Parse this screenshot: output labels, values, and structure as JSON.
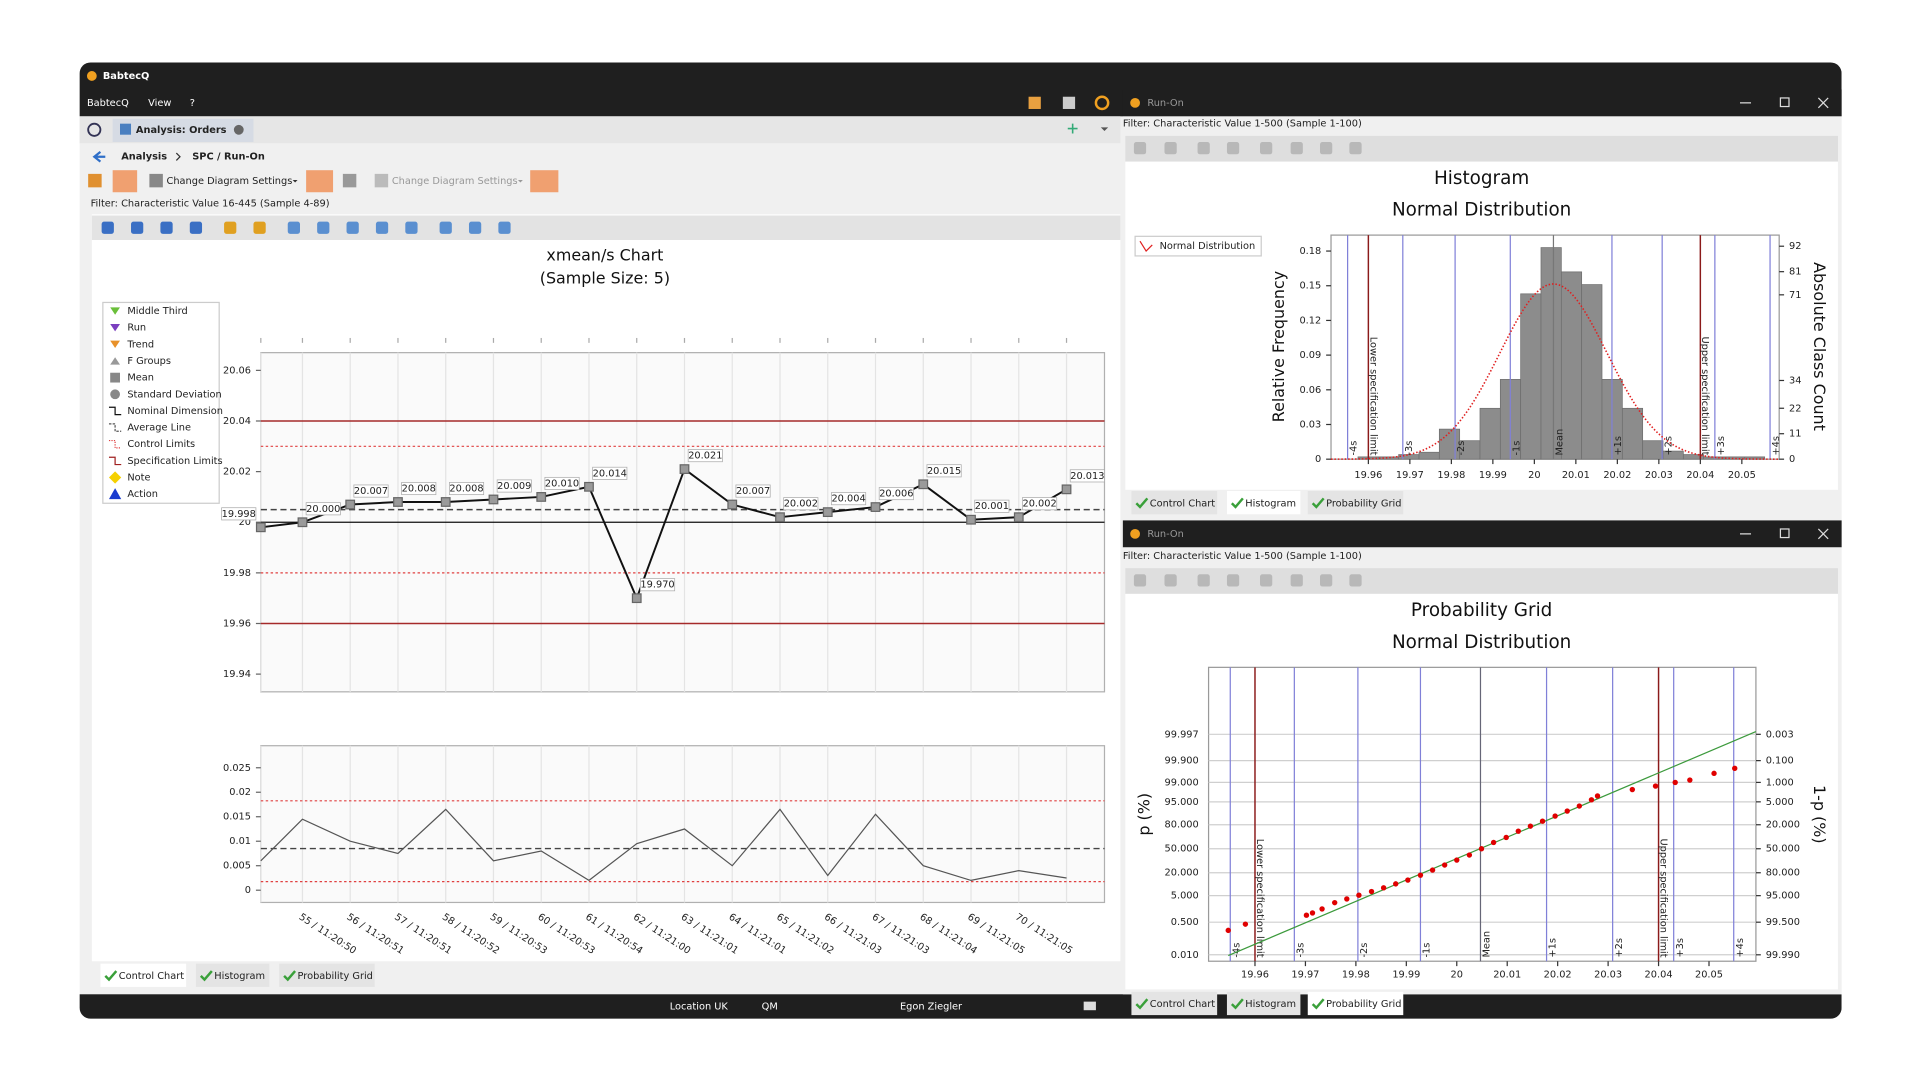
{
  "window": {
    "title": "BabtecQ",
    "menu": [
      "BabtecQ",
      "View",
      "?"
    ]
  },
  "main_panel": {
    "tab": "Analysis: Orders",
    "breadcrumb": [
      "Analysis",
      "SPC / Run-On"
    ],
    "toolbar": [
      "Change Diagram Settings",
      "Change Diagram Settings"
    ],
    "filter": "Filter: Characteristic Value 16-445 (Sample 4-89)",
    "bottom_tabs": [
      "Control Chart",
      "Histogram",
      "Probability Grid"
    ]
  },
  "histogram_window": {
    "title": "Run-On",
    "filter": "Filter: Characteristic Value 1-500 (Sample 1-100)",
    "bottom_tabs": [
      "Control Chart",
      "Histogram",
      "Probability Grid"
    ]
  },
  "probability_window": {
    "title": "Run-On",
    "filter": "Filter: Characteristic Value 1-500 (Sample 1-100)",
    "bottom_tabs": [
      "Control Chart",
      "Histogram",
      "Probability Grid"
    ]
  },
  "status_bar": [
    "Location UK",
    "QM",
    "Egon Ziegler"
  ],
  "chart_data": [
    {
      "type": "line",
      "title": "xmean/s Chart",
      "subtitle": "(Sample Size: 5)",
      "legend": [
        "Middle Third",
        "Run",
        "Trend",
        "F Groups",
        "Mean",
        "Standard Deviation",
        "Nominal Dimension",
        "Average Line",
        "Control Limits",
        "Specification Limits",
        "Note",
        "Action"
      ],
      "categories": [
        null,
        "55 / 11:20:50",
        "56 / 11:20:51",
        "57 / 11:20:51",
        "58 / 11:20:52",
        "59 / 11:20:53",
        "60 / 11:20:53",
        "61 / 11:20:54",
        "62 / 11:21:00",
        "63 / 11:21:01",
        "64 / 11:21:01",
        "65 / 11:21:02",
        "66 / 11:21:03",
        "67 / 11:21:03",
        "68 / 11:21:04",
        "69 / 11:21:05",
        "70 / 11:21:05",
        null
      ],
      "values": [
        19.998,
        20.0,
        20.007,
        20.008,
        20.008,
        20.009,
        20.01,
        20.014,
        19.97,
        20.021,
        20.007,
        20.002,
        20.004,
        20.006,
        20.015,
        20.001,
        20.002,
        20.013
      ],
      "value_labels": [
        "19.998",
        "20.000",
        "20.007",
        "20.008",
        "20.008",
        "20.009",
        "20.010",
        "20.014",
        "19.970",
        "20.021",
        "20.007",
        "20.002",
        "20.004",
        "20.006",
        "20.015",
        "20.001",
        "20.002",
        "20.013"
      ],
      "color": "#111111",
      "ylim": [
        19.933,
        20.067
      ],
      "yticks": [
        19.94,
        19.96,
        19.98,
        20,
        20.02,
        20.04,
        20.06
      ],
      "spec_limits": [
        19.96,
        20.04
      ],
      "control_limits": [
        19.98,
        20.03
      ],
      "average": 20.005,
      "nominal": 20
    },
    {
      "type": "line",
      "values": [
        0.006,
        0.0145,
        0.01,
        0.0075,
        0.0165,
        0.006,
        0.008,
        0.002,
        0.0095,
        0.0125,
        0.005,
        0.0165,
        0.003,
        0.0155,
        0.005,
        0.002,
        0.004,
        0.0025
      ],
      "color": "#555555",
      "ylim": [
        -0.0025,
        0.0295
      ],
      "yticks": [
        0,
        0.005,
        0.01,
        0.015,
        0.02,
        0.025
      ],
      "control_limits": [
        0.00175,
        0.01825
      ],
      "average": 0.0085
    },
    {
      "type": "histogram",
      "title": "Histogram",
      "subtitle": "Normal Distribution",
      "y_label": "Relative Frequency",
      "y2_label": "Absolute Class Count",
      "bins": [
        19.9575,
        19.9624,
        19.9673,
        19.9722,
        19.9771,
        19.982,
        19.9869,
        19.9918,
        19.9967,
        20.0016,
        20.0065,
        20.0114,
        20.0163,
        20.0212,
        20.0261,
        20.031,
        20.0359,
        20.0408,
        20.0457,
        20.0506,
        20.0555
      ],
      "values": [
        0.002,
        0.002,
        0.004,
        0.006,
        0.026,
        0.016,
        0.044,
        0.069,
        0.143,
        0.183,
        0.162,
        0.151,
        0.069,
        0.044,
        0.016,
        0.007,
        0.004,
        0.002,
        0.002,
        0.002
      ],
      "color": "#8c8c8c",
      "xlim": [
        19.951,
        20.059
      ],
      "xticks": [
        19.96,
        19.97,
        19.98,
        19.99,
        20,
        20.01,
        20.02,
        20.03,
        20.04,
        20.05
      ],
      "ylim": [
        0,
        0.1938
      ],
      "yticks": [
        0,
        0.03,
        0.06,
        0.09,
        0.12,
        0.15,
        0.18
      ],
      "y2lim": [
        0,
        96.8
      ],
      "y2ticks": [
        0,
        11,
        22,
        34,
        71,
        81,
        92
      ],
      "distribution": {
        "name": "Normal Distribution",
        "mean": 20.0046,
        "sd": 0.0129,
        "color": "#e02020"
      },
      "spec_limits": [
        {
          "value": 19.96,
          "label": "Lower specification limit"
        },
        {
          "value": 20.04,
          "label": "Upper specification limit"
        }
      ],
      "sigma_lines": [
        {
          "value": 19.955,
          "label": "-4s"
        },
        {
          "value": 19.9683,
          "label": "-3s"
        },
        {
          "value": 19.9809,
          "label": "-2s"
        },
        {
          "value": 19.9942,
          "label": "-1s"
        },
        {
          "value": 20.0046,
          "label": "Mean"
        },
        {
          "value": 20.0187,
          "label": "+1s"
        },
        {
          "value": 20.0308,
          "label": "+2s"
        },
        {
          "value": 20.0435,
          "label": "+3s"
        },
        {
          "value": 20.0568,
          "label": "+4s"
        }
      ]
    },
    {
      "type": "scatter",
      "yscale": "probability",
      "title": "Probability Grid",
      "subtitle": "Normal Distribution",
      "y_label": "p (%)",
      "y2_label": "1-p (%)",
      "x": [
        19.9547,
        19.9581,
        19.9702,
        19.9714,
        19.9733,
        19.9758,
        19.9782,
        19.9806,
        19.9831,
        19.9855,
        19.9879,
        19.9903,
        19.9928,
        19.9952,
        19.9976,
        20.0,
        20.0025,
        20.0049,
        20.0073,
        20.0098,
        20.0122,
        20.0146,
        20.017,
        20.0195,
        20.0219,
        20.0243,
        20.0267,
        20.0279,
        20.0348,
        20.0394,
        20.0433,
        20.0462,
        20.051,
        20.0551
      ],
      "values": [
        0.21,
        0.41,
        0.99,
        1.22,
        1.74,
        2.94,
        3.92,
        5.16,
        6.68,
        8.53,
        10.9,
        13.6,
        17.7,
        22.7,
        28.4,
        34.6,
        41.3,
        50,
        58.7,
        65.4,
        73.1,
        78.6,
        83.3,
        87.4,
        90.7,
        93.3,
        95.7,
        96.8,
        98.1,
        98.6,
        99.0,
        99.2,
        99.59,
        99.76
      ],
      "color": "#e00000",
      "xlim": [
        19.9508,
        20.0593
      ],
      "xticks": [
        19.96,
        19.97,
        19.98,
        19.99,
        20,
        20.01,
        20.02,
        20.03,
        20.04,
        20.05
      ],
      "ylim": [
        0.004,
        99.99999999
      ],
      "yticks": [
        {
          "value": 0.01,
          "label": "0.010"
        },
        {
          "value": 0.5,
          "label": "0.500"
        },
        {
          "value": 5,
          "label": "5.000"
        },
        {
          "value": 20,
          "label": "20.000"
        },
        {
          "value": 50,
          "label": "50.000"
        },
        {
          "value": 80,
          "label": "80.000"
        },
        {
          "value": 95,
          "label": "95.000"
        },
        {
          "value": 99,
          "label": "99.000"
        },
        {
          "value": 99.9,
          "label": "99.900"
        },
        99.997
      ],
      "y2lim": [
        99.996,
        1e-08
      ],
      "y2ticks": [
        0.003,
        {
          "value": 0.1,
          "label": "0.100"
        },
        {
          "value": 1,
          "label": "1.000"
        },
        {
          "value": 5,
          "label": "5.000"
        },
        {
          "value": 20,
          "label": "20.000"
        },
        {
          "value": 50,
          "label": "50.000"
        },
        {
          "value": 80,
          "label": "80.000"
        },
        {
          "value": 95,
          "label": "95.000"
        },
        {
          "value": 99.5,
          "label": "99.500"
        },
        {
          "value": 99.99,
          "label": "99.990"
        }
      ],
      "fit_line": {
        "x": [
          19.9547,
          20.0593
        ],
        "values": [
          0.009,
          99.998
        ],
        "color": "#3c9a3c"
      },
      "spec_limits": [
        {
          "value": 19.96,
          "label": "Lower specification limit"
        },
        {
          "value": 20.04,
          "label": "Upper specification limit"
        }
      ],
      "sigma_lines": [
        {
          "value": 19.9551,
          "label": "-4s"
        },
        {
          "value": 19.9678,
          "label": "-3s"
        },
        {
          "value": 19.9804,
          "label": "-2s"
        },
        {
          "value": 19.9928,
          "label": "-1s"
        },
        {
          "value": 20.0047,
          "label": "Mean"
        },
        {
          "value": 20.0178,
          "label": "+1s"
        },
        {
          "value": 20.0309,
          "label": "+2s"
        },
        {
          "value": 20.043,
          "label": "+3s"
        },
        {
          "value": 20.0549,
          "label": "+4s"
        }
      ]
    }
  ]
}
